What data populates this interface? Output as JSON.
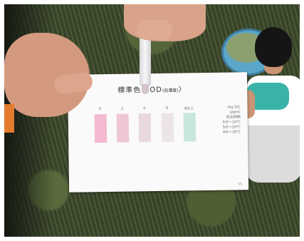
{
  "card": {
    "title": "標準色 COD",
    "title_small": "(低濃度)",
    "title_suffix": "〉",
    "scale": [
      {
        "label": "0",
        "color": "#f2b9d0"
      },
      {
        "label": "2",
        "color": "#eec7d6"
      },
      {
        "label": "4",
        "color": "#e9d8df"
      },
      {
        "label": "6",
        "color": "#ece4e7"
      },
      {
        "label": "8以上",
        "color": "#c8e7db"
      }
    ],
    "unit_text": "mg O/L\n(ppm)",
    "notes": "反応時間\n5分～10℃\n5分～20℃\n4分～30℃",
    "code": "00-"
  },
  "colors": {
    "grass": "#3f4a2e",
    "bucket": "#5aa7c9",
    "shirt_accent": "#39b3a8",
    "sleeve": "#e37b2d"
  }
}
